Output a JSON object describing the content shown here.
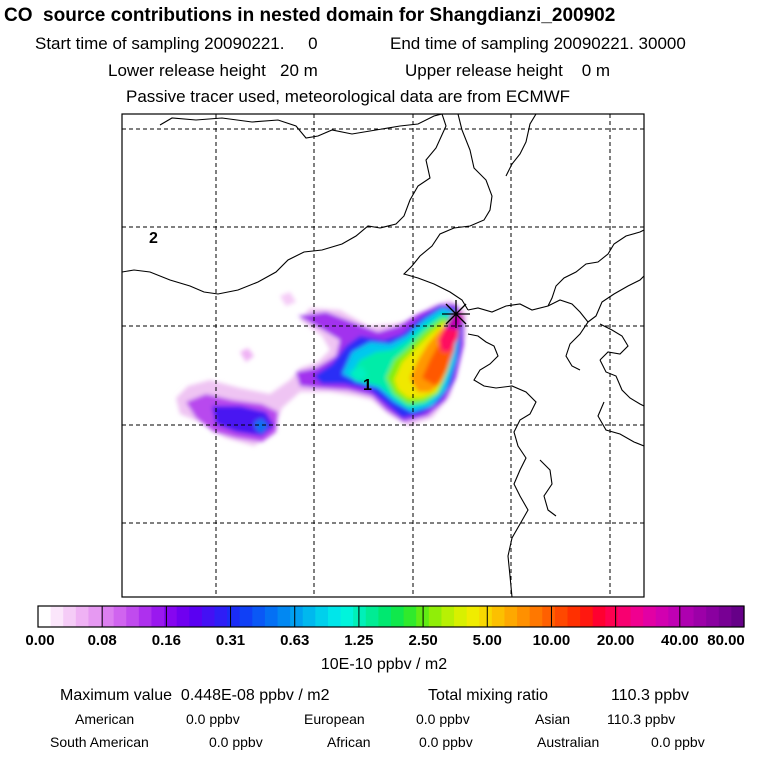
{
  "header": {
    "title": "CO  source contributions in nested domain for Shangdianzi_200902",
    "line1_left": "Start time of sampling 20090221.     0",
    "line1_right": "End time of sampling 20090221. 30000",
    "line2_left": "Lower release height   20 m",
    "line2_right": "Upper release height    0 m",
    "line3": "Passive tracer used, meteorological data are from ECMWF"
  },
  "map": {
    "label_1": "1",
    "label_2": "2",
    "receptor_marker": "station-star-icon",
    "colors": {
      "border": "#000000",
      "grid": "#000000"
    }
  },
  "legend": {
    "tick_labels": [
      "0.00",
      "0.08",
      "0.16",
      "0.31",
      "0.63",
      "1.25",
      "2.50",
      "5.00",
      "10.00",
      "20.00",
      "40.00",
      "80.00"
    ],
    "colors": [
      "#ffffff",
      "#fbe6fb",
      "#f5ccf7",
      "#efb2f4",
      "#e699f2",
      "#dc7ff0",
      "#d064ef",
      "#c04bee",
      "#ae30ee",
      "#9a18ef",
      "#8606f0",
      "#7000f0",
      "#5a00f2",
      "#4410f4",
      "#2e1ef6",
      "#1a2cf6",
      "#1040f6",
      "#0a58f6",
      "#0470f4",
      "#0288f2",
      "#00a0f0",
      "#00b8ee",
      "#00d0ec",
      "#00e6ea",
      "#00f4dc",
      "#00f0b8",
      "#00ec94",
      "#00e870",
      "#10e84c",
      "#30ea2c",
      "#60ec14",
      "#90ee08",
      "#b8f004",
      "#d8f000",
      "#f0ec00",
      "#f8d800",
      "#fcc000",
      "#fea800",
      "#ff9000",
      "#ff7800",
      "#ff6000",
      "#ff4800",
      "#ff3000",
      "#ff1810",
      "#ff0030",
      "#ff0050",
      "#f80070",
      "#f00090",
      "#e200a4",
      "#d200b0",
      "#c000b4",
      "#ae00b0",
      "#9c00a8",
      "#8a00a0",
      "#780094",
      "#660088"
    ],
    "units": "10E-10 ppbv / m2"
  },
  "footer": {
    "max_label": "Maximum value  0.448E-08 ppbv / m2",
    "total_label": "Total mixing ratio",
    "total_value": "110.3 ppbv",
    "row1": [
      {
        "label": "American",
        "value": "0.0 ppbv"
      },
      {
        "label": "European",
        "value": "0.0 ppbv"
      },
      {
        "label": "Asian",
        "value": "110.3 ppbv"
      }
    ],
    "row2": [
      {
        "label": "South American",
        "value": "0.0 ppbv"
      },
      {
        "label": "African",
        "value": "0.0 ppbv"
      },
      {
        "label": "Australian",
        "value": "0.0 ppbv"
      }
    ]
  }
}
